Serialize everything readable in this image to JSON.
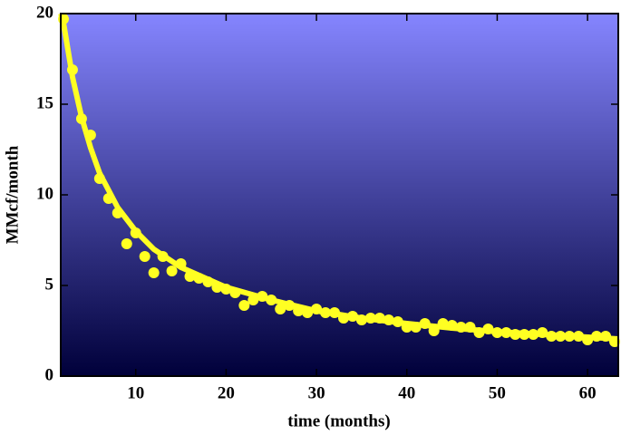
{
  "chart_data": {
    "type": "scatter",
    "xlabel": "time (months)",
    "ylabel": "MMcf/month",
    "xlim": [
      1.7,
      63.4
    ],
    "ylim": [
      0,
      20
    ],
    "xticks": [
      10,
      20,
      30,
      40,
      50,
      60
    ],
    "yticks": [
      0,
      5,
      10,
      15,
      20
    ],
    "background": [
      "#8585ff",
      "#00003a"
    ],
    "series": [
      {
        "style": "markers",
        "color": "#ffff22",
        "x": [
          2,
          3,
          4,
          5,
          6,
          7,
          8,
          9,
          10,
          11,
          12,
          13,
          14,
          15,
          16,
          17,
          18,
          19,
          20,
          21,
          22,
          23,
          24,
          25,
          26,
          27,
          28,
          29,
          30,
          31,
          32,
          33,
          34,
          35,
          36,
          37,
          38,
          39,
          40,
          41,
          42,
          43,
          44,
          45,
          46,
          47,
          48,
          49,
          50,
          51,
          52,
          53,
          54,
          55,
          56,
          57,
          58,
          59,
          60,
          61,
          62,
          63
        ],
        "values": [
          19.7,
          16.9,
          14.2,
          13.3,
          10.9,
          9.8,
          9.0,
          7.3,
          7.9,
          6.6,
          5.7,
          6.6,
          5.8,
          6.2,
          5.5,
          5.4,
          5.2,
          4.9,
          4.8,
          4.6,
          3.9,
          4.2,
          4.4,
          4.2,
          3.7,
          3.9,
          3.6,
          3.5,
          3.7,
          3.5,
          3.5,
          3.2,
          3.3,
          3.1,
          3.2,
          3.2,
          3.1,
          3.0,
          2.7,
          2.7,
          2.9,
          2.5,
          2.9,
          2.8,
          2.7,
          2.7,
          2.4,
          2.6,
          2.4,
          2.4,
          2.3,
          2.3,
          2.3,
          2.4,
          2.2,
          2.2,
          2.2,
          2.2,
          2.0,
          2.2,
          2.2,
          1.9
        ]
      },
      {
        "style": "line",
        "color": "#ffff22",
        "x": [
          1.7,
          2,
          3,
          4,
          5,
          6,
          8,
          10,
          12,
          15,
          20,
          25,
          30,
          35,
          40,
          45,
          50,
          55,
          60,
          63.4
        ],
        "values": [
          20,
          19.5,
          16.5,
          14.3,
          12.6,
          11.2,
          9.3,
          8.0,
          7.0,
          6.0,
          4.9,
          4.2,
          3.6,
          3.2,
          2.9,
          2.65,
          2.45,
          2.3,
          2.15,
          2.05
        ]
      }
    ]
  }
}
